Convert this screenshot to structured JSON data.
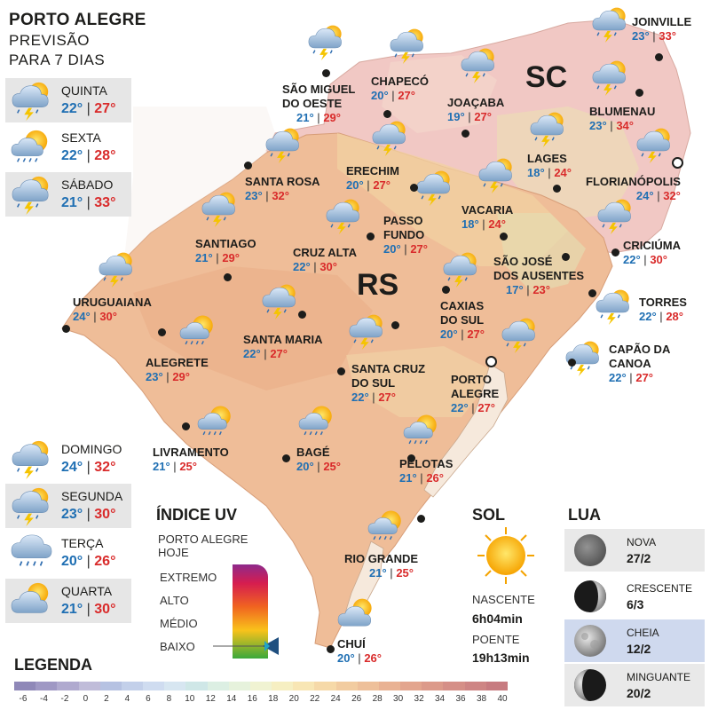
{
  "header": {
    "line1": "PORTO ALEGRE",
    "line2": "PREVISÃO",
    "line3": "PARA 7 DIAS"
  },
  "days": [
    {
      "name": "QUINTA",
      "min": "22°",
      "max": "27°",
      "icon": "storm-sun-icon"
    },
    {
      "name": "SEXTA",
      "min": "22°",
      "max": "28°",
      "icon": "rain-sun-icon"
    },
    {
      "name": "SÁBADO",
      "min": "21°",
      "max": "33°",
      "icon": "storm-sun-icon"
    },
    {
      "name": "DOMINGO",
      "min": "24°",
      "max": "32°",
      "icon": "storm-sun-icon"
    },
    {
      "name": "SEGUNDA",
      "min": "23°",
      "max": "30°",
      "icon": "storm-sun-icon"
    },
    {
      "name": "TERÇA",
      "min": "20°",
      "max": "26°",
      "icon": "rain-cloud-icon"
    },
    {
      "name": "QUARTA",
      "min": "21°",
      "max": "30°",
      "icon": "partly-cloudy-icon"
    }
  ],
  "regions": {
    "sc": "SC",
    "rs": "RS"
  },
  "cities": {
    "joinville": {
      "name": "JOINVILLE",
      "min": "23°",
      "max": "33°"
    },
    "blumenau": {
      "name": "BLUMENAU",
      "min": "23°",
      "max": "34°"
    },
    "sao_miguel": {
      "name1": "SÃO MIGUEL",
      "name2": "DO OESTE",
      "min": "21°",
      "max": "29°"
    },
    "chapeco": {
      "name": "CHAPECÓ",
      "min": "20°",
      "max": "27°"
    },
    "joacaba": {
      "name": "JOAÇABA",
      "min": "19°",
      "max": "27°"
    },
    "lages": {
      "name": "LAGES",
      "min": "18°",
      "max": "24°"
    },
    "florianopolis": {
      "name": "FLORIANÓPOLIS",
      "min": "24°",
      "max": "32°"
    },
    "santa_rosa": {
      "name": "SANTA ROSA",
      "min": "23°",
      "max": "32°"
    },
    "erechim": {
      "name": "ERECHIM",
      "min": "20°",
      "max": "27°"
    },
    "vacaria": {
      "name": "VACARIA",
      "min": "18°",
      "max": "24°"
    },
    "passo_fundo": {
      "name1": "PASSO",
      "name2": "FUNDO",
      "min": "20°",
      "max": "27°"
    },
    "santiago": {
      "name": "SANTIAGO",
      "min": "21°",
      "max": "29°"
    },
    "cruz_alta": {
      "name": "CRUZ ALTA",
      "min": "22°",
      "max": "30°"
    },
    "sao_jose": {
      "name1": "SÃO JOSÉ",
      "name2": "DOS AUSENTES",
      "min": "17°",
      "max": "23°"
    },
    "criciuma": {
      "name": "CRICIÚMA",
      "min": "22°",
      "max": "30°"
    },
    "uruguaiana": {
      "name": "URUGUAIANA",
      "min": "24°",
      "max": "30°"
    },
    "caxias": {
      "name1": "CAXIAS",
      "name2": "DO SUL",
      "min": "20°",
      "max": "27°"
    },
    "torres": {
      "name": "TORRES",
      "min": "22°",
      "max": "28°"
    },
    "santa_maria": {
      "name": "SANTA MARIA",
      "min": "22°",
      "max": "27°"
    },
    "alegrete": {
      "name": "ALEGRETE",
      "min": "23°",
      "max": "29°"
    },
    "capao": {
      "name1": "CAPÃO DA",
      "name2": "CANOA",
      "min": "22°",
      "max": "27°"
    },
    "santa_cruz": {
      "name1": "SANTA CRUZ",
      "name2": "DO SUL",
      "min": "22°",
      "max": "27°"
    },
    "porto_alegre": {
      "name1": "PORTO",
      "name2": "ALEGRE",
      "min": "22°",
      "max": "27°"
    },
    "livramento": {
      "name": "LIVRAMENTO",
      "min": "21°",
      "max": "25°"
    },
    "bage": {
      "name": "BAGÉ",
      "min": "20°",
      "max": "25°"
    },
    "pelotas": {
      "name": "PELOTAS",
      "min": "21°",
      "max": "26°"
    },
    "rio_grande": {
      "name": "RIO GRANDE",
      "min": "21°",
      "max": "25°"
    },
    "chui": {
      "name": "CHUÍ",
      "min": "20°",
      "max": "26°"
    }
  },
  "uv": {
    "title": "ÍNDICE UV",
    "sub1": "PORTO ALEGRE",
    "sub2": "HOJE",
    "levels": [
      "EXTREMO",
      "ALTO",
      "MÉDIO",
      "BAIXO"
    ],
    "current": "BAIXO"
  },
  "sun": {
    "title": "SOL",
    "rise_label": "NASCENTE",
    "rise": "6h04min",
    "set_label": "POENTE",
    "set": "19h13min"
  },
  "moon": {
    "title": "LUA",
    "phases": [
      {
        "name": "NOVA",
        "date": "27/2"
      },
      {
        "name": "CRESCENTE",
        "date": "6/3"
      },
      {
        "name": "CHEIA",
        "date": "12/2"
      },
      {
        "name": "MINGUANTE",
        "date": "20/2"
      }
    ]
  },
  "legend": {
    "title": "LEGENDA",
    "ticks": [
      "-6",
      "-4",
      "-2",
      "0",
      "2",
      "4",
      "6",
      "8",
      "10",
      "12",
      "14",
      "16",
      "18",
      "20",
      "22",
      "24",
      "26",
      "28",
      "30",
      "32",
      "34",
      "36",
      "38",
      "40"
    ],
    "colors": [
      "#8f88b8",
      "#9f98c4",
      "#b0aacf",
      "#c0bcd9",
      "#b6c2e2",
      "#c3d0ea",
      "#cfdcf0",
      "#d7e6f1",
      "#cfe7e7",
      "#dcefe3",
      "#e6f2dc",
      "#f0f3d2",
      "#f6efc2",
      "#f8e6b4",
      "#f6d9a8",
      "#f2cca0",
      "#eec09a",
      "#e9b293",
      "#e3a58e",
      "#dc9a8a",
      "#d58f87",
      "#ce8584",
      "#c77b80"
    ]
  }
}
